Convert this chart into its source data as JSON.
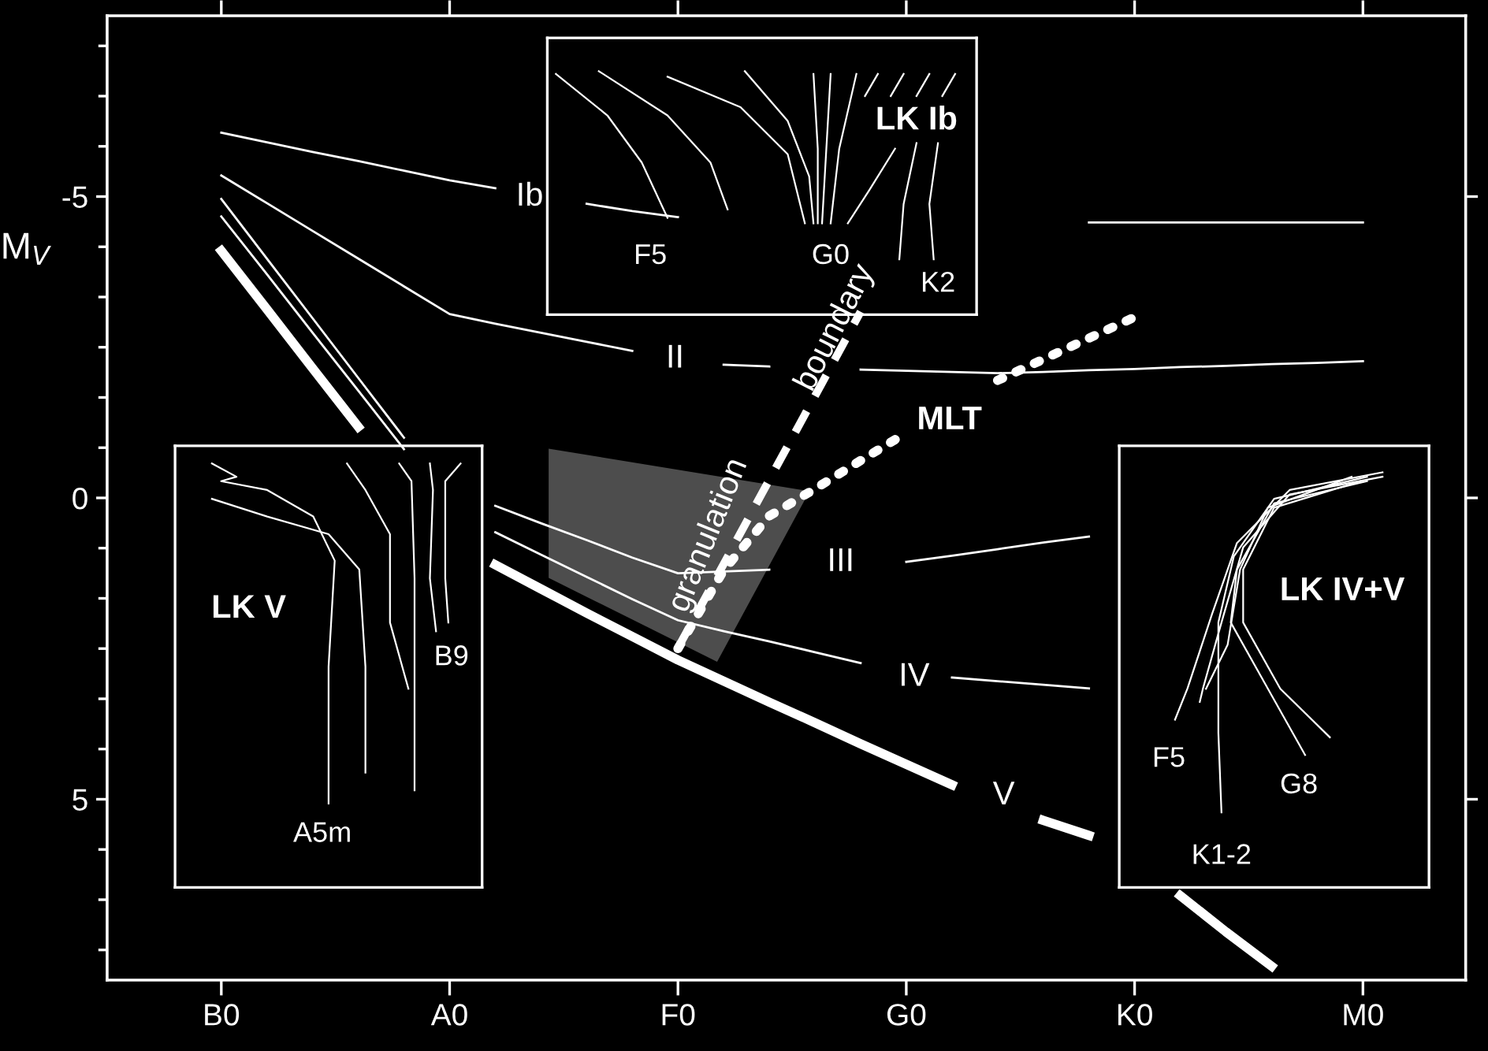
{
  "chart_data": {
    "type": "line",
    "ylabel": "M$_{V}$",
    "categories": [
      "B0",
      null,
      null,
      null,
      null,
      "A0",
      null,
      null,
      null,
      null,
      "F0",
      null,
      null,
      null,
      null,
      "G0",
      null,
      null,
      null,
      null,
      "K0",
      null,
      null,
      null,
      null,
      "M0"
    ],
    "ylim": [
      8,
      -8
    ],
    "yticks": [
      -5,
      0,
      5
    ],
    "series": [
      {
        "color": "#ffffff",
        "line_style": "solid",
        "values": [
          -6.06,
          -5.9,
          -5.74,
          -5.59,
          -5.43,
          -5.27,
          -5.14,
          null,
          -4.88,
          -4.76,
          -4.66,
          null,
          null,
          null,
          null,
          null,
          null,
          null,
          null,
          -4.57,
          -4.57,
          -4.57,
          -4.57,
          -4.57,
          -4.57,
          -4.57
        ]
      },
      {
        "color": "#ffffff",
        "line_style": "solid",
        "values": [
          -5.35,
          -4.89,
          -4.43,
          -3.97,
          -3.51,
          -3.05,
          -2.89,
          -2.74,
          -2.59,
          -2.44,
          null,
          -2.21,
          -2.18,
          null,
          -2.13,
          -2.11,
          -2.09,
          -2.07,
          -2.09,
          -2.12,
          -2.14,
          -2.17,
          -2.19,
          -2.22,
          -2.24,
          -2.27
        ]
      },
      {
        "color": "#ffffff",
        "line_style": "solid",
        "values": [
          -4.96,
          -3.97,
          -2.98,
          -1.99,
          -1.0,
          null,
          0.13,
          0.42,
          0.7,
          0.99,
          1.25,
          1.22,
          1.19,
          null,
          null,
          1.06,
          0.96,
          0.85,
          0.74,
          0.64,
          null,
          null,
          null,
          null,
          null,
          null
        ]
      },
      {
        "color": "#ffffff",
        "line_style": "solid",
        "values": [
          -4.67,
          -3.71,
          -2.74,
          -1.78,
          -0.81,
          null,
          0.57,
          0.94,
          1.31,
          1.68,
          2.03,
          2.21,
          2.38,
          2.56,
          2.74,
          null,
          2.98,
          3.04,
          3.1,
          3.16,
          null,
          null,
          null,
          null,
          null,
          null
        ]
      },
      {
        "color": "#ffffff",
        "line_style": "solid",
        "values": [
          -4.1,
          -3.13,
          -2.15,
          -1.18,
          null,
          null,
          1.11,
          1.51,
          1.91,
          2.3,
          2.69,
          3.04,
          3.39,
          3.73,
          4.08,
          4.42,
          4.76,
          null,
          5.35,
          5.6,
          null,
          6.6,
          7.2,
          7.77,
          null,
          null
        ]
      },
      {
        "color": "#ffffff",
        "line_style": "dashed",
        "values": [
          null,
          null,
          null,
          null,
          null,
          null,
          null,
          null,
          null,
          null,
          2.49,
          1.1,
          -0.3,
          -1.69,
          -3.09,
          null,
          null,
          null,
          null,
          null,
          null,
          null,
          null,
          null,
          null,
          null
        ]
      },
      {
        "color": "#ffffff",
        "line_style": "dotted",
        "values": [
          null,
          null,
          null,
          null,
          null,
          null,
          null,
          null,
          null,
          null,
          2.5,
          1.2,
          0.3,
          -0.15,
          -0.62,
          -1.08,
          null,
          -1.95,
          -2.3,
          -2.65,
          -3.0,
          null,
          null,
          null,
          null,
          null
        ]
      }
    ],
    "annotations": [
      "Ib",
      "II",
      "III",
      "IV",
      "V",
      "granulation",
      "boundary",
      "MLT",
      "LK Ib",
      "F5",
      "G0",
      "K2",
      "LK V",
      "B9",
      "A5m",
      "LK IV+V",
      "F5",
      "G8",
      "K1-2"
    ]
  }
}
